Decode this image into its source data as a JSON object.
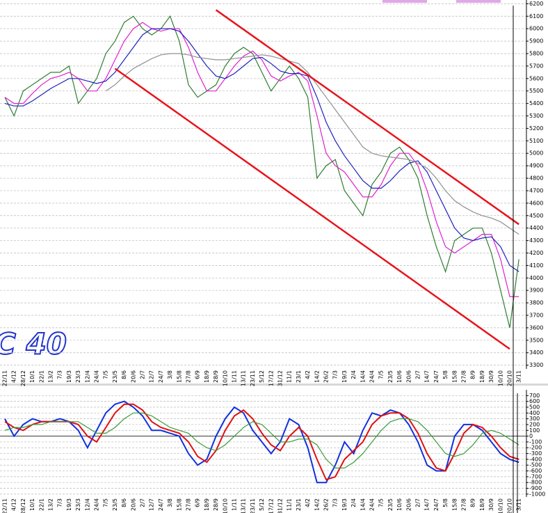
{
  "chart_data": [
    {
      "type": "line",
      "watermark": "C 40",
      "grid": true,
      "categories": [
        "22/11",
        "4/12",
        "28/12",
        "10/1",
        "22/1",
        "13/2",
        "7/3",
        "19/3",
        "23/3",
        "12/4",
        "24/4",
        "7/5",
        "23/5",
        "8/6",
        "20/6",
        "2/7",
        "12/7",
        "24/7",
        "3/8",
        "15/8",
        "27/8",
        "6/9",
        "18/9",
        "28/9",
        "10/10",
        "1/11",
        "13/11",
        "23/11",
        "5/12",
        "17/12",
        "31/12",
        "11/1",
        "23/1",
        "4/2",
        "14/2",
        "26/2",
        "7/3",
        "19/3",
        "2/4",
        "14/4",
        "24/4",
        "7/5",
        "23/5",
        "10/6",
        "20/6",
        "2/7",
        "14/7",
        "24/7",
        "5/8",
        "15/8",
        "27/8",
        "8/9",
        "18/9",
        "30/9",
        "10/10",
        "20/10",
        "3/11"
      ],
      "series": [
        {
          "color": "#2e7d32",
          "values": [
            5450,
            5300,
            5500,
            5550,
            5600,
            5650,
            5650,
            5700,
            5400,
            5500,
            5600,
            5800,
            5900,
            6050,
            6100,
            6000,
            5950,
            6000,
            6100,
            5900,
            5550,
            5450,
            5500,
            5550,
            5700,
            5800,
            5850,
            5800,
            5650,
            5500,
            5600,
            5700,
            5600,
            5450,
            4800,
            4900,
            4950,
            4700,
            4600,
            4500,
            4750,
            4850,
            5000,
            5050,
            4950,
            4800,
            4500,
            4250,
            4050,
            4300,
            4350,
            4400,
            4400,
            4200,
            3900,
            3600,
            4150
          ]
        },
        {
          "color": "#e020d0",
          "values": [
            5450,
            5400,
            5400,
            5480,
            5550,
            5600,
            5620,
            5650,
            5600,
            5500,
            5500,
            5600,
            5750,
            5900,
            6000,
            6050,
            6000,
            5980,
            6000,
            6000,
            5850,
            5650,
            5500,
            5500,
            5600,
            5700,
            5780,
            5820,
            5750,
            5620,
            5580,
            5620,
            5650,
            5580,
            5300,
            5000,
            4900,
            4850,
            4750,
            4650,
            4650,
            4750,
            4900,
            5000,
            5000,
            4900,
            4700,
            4450,
            4250,
            4200,
            4250,
            4300,
            4350,
            4350,
            4150,
            3850,
            3850
          ]
        },
        {
          "color": "#2020c0",
          "values": [
            5400,
            5380,
            5380,
            5420,
            5470,
            5520,
            5560,
            5600,
            5600,
            5580,
            5560,
            5580,
            5650,
            5750,
            5850,
            5950,
            6000,
            6000,
            6000,
            5980,
            5900,
            5800,
            5700,
            5620,
            5600,
            5640,
            5700,
            5760,
            5770,
            5720,
            5660,
            5640,
            5640,
            5620,
            5450,
            5250,
            5100,
            4980,
            4880,
            4780,
            4720,
            4720,
            4780,
            4860,
            4920,
            4940,
            4850,
            4700,
            4550,
            4400,
            4320,
            4300,
            4320,
            4330,
            4250,
            4100,
            4050
          ]
        },
        {
          "color": "#909090",
          "values": [
            null,
            null,
            null,
            null,
            null,
            null,
            null,
            null,
            null,
            null,
            null,
            5500,
            5550,
            5620,
            5680,
            5720,
            5760,
            5790,
            5800,
            5800,
            5790,
            5770,
            5760,
            5750,
            5750,
            5760,
            5770,
            5780,
            5790,
            5780,
            5760,
            5740,
            5720,
            5650,
            5550,
            5450,
            5350,
            5250,
            5150,
            5050,
            5000,
            4980,
            4970,
            4960,
            4950,
            4920,
            4880,
            4800,
            4700,
            4620,
            4570,
            4530,
            4500,
            4480,
            4450,
            4400,
            4350
          ]
        }
      ],
      "channel": [
        {
          "color": "#e8141c",
          "from": {
            "x": "28/9",
            "y": 6150
          },
          "to": {
            "x": "3/11",
            "y": 4430
          }
        },
        {
          "color": "#e8141c",
          "from": {
            "x": "23/5",
            "y": 5680
          },
          "to": {
            "x": "20/10",
            "y": 3430
          }
        }
      ],
      "ylim": [
        3270,
        6230
      ],
      "yticks": [
        3300,
        3400,
        3500,
        3600,
        3700,
        3800,
        3900,
        4000,
        4100,
        4200,
        4300,
        4400,
        4500,
        4600,
        4700,
        4800,
        4900,
        5000,
        5100,
        5200,
        5300,
        5400,
        5500,
        5600,
        5700,
        5800,
        5900,
        6000,
        6100,
        6200
      ]
    },
    {
      "type": "line",
      "grid": true,
      "series": [
        {
          "color": "#1030e0",
          "values": [
            300,
            0,
            200,
            300,
            250,
            250,
            300,
            250,
            100,
            -200,
            100,
            400,
            550,
            600,
            500,
            350,
            100,
            100,
            50,
            0,
            -300,
            -500,
            -400,
            0,
            300,
            500,
            400,
            100,
            -100,
            -300,
            -100,
            300,
            200,
            -200,
            -800,
            -800,
            -500,
            -100,
            -300,
            100,
            400,
            350,
            450,
            400,
            200,
            -100,
            -500,
            -600,
            -600,
            0,
            200,
            200,
            100,
            -100,
            -300,
            -400,
            -450
          ]
        },
        {
          "color": "#e01010",
          "values": [
            250,
            150,
            100,
            200,
            250,
            250,
            250,
            250,
            200,
            0,
            -100,
            150,
            400,
            550,
            550,
            450,
            250,
            150,
            100,
            50,
            -100,
            -350,
            -450,
            -250,
            100,
            350,
            450,
            300,
            50,
            -150,
            -250,
            0,
            150,
            0,
            -400,
            -750,
            -700,
            -400,
            -250,
            -100,
            200,
            350,
            400,
            400,
            300,
            50,
            -300,
            -550,
            -600,
            -300,
            50,
            200,
            150,
            0,
            -200,
            -350,
            -400
          ]
        },
        {
          "color": "#3a9a3a",
          "values": [
            100,
            150,
            150,
            200,
            200,
            250,
            250,
            250,
            250,
            150,
            50,
            50,
            150,
            300,
            400,
            400,
            350,
            250,
            150,
            100,
            50,
            -100,
            -200,
            -250,
            -150,
            0,
            150,
            250,
            200,
            50,
            -100,
            -100,
            -50,
            -50,
            -150,
            -400,
            -550,
            -550,
            -450,
            -300,
            -100,
            100,
            250,
            300,
            300,
            250,
            100,
            -100,
            -300,
            -350,
            -300,
            -150,
            50,
            100,
            50,
            -50,
            -150
          ]
        }
      ],
      "ylim": [
        -1050,
        800
      ],
      "yticks": [
        700,
        600,
        500,
        400,
        300,
        200,
        100,
        0,
        -100,
        -200,
        -300,
        -400,
        -500,
        -600,
        -700,
        -800,
        -900,
        -1000
      ]
    }
  ]
}
